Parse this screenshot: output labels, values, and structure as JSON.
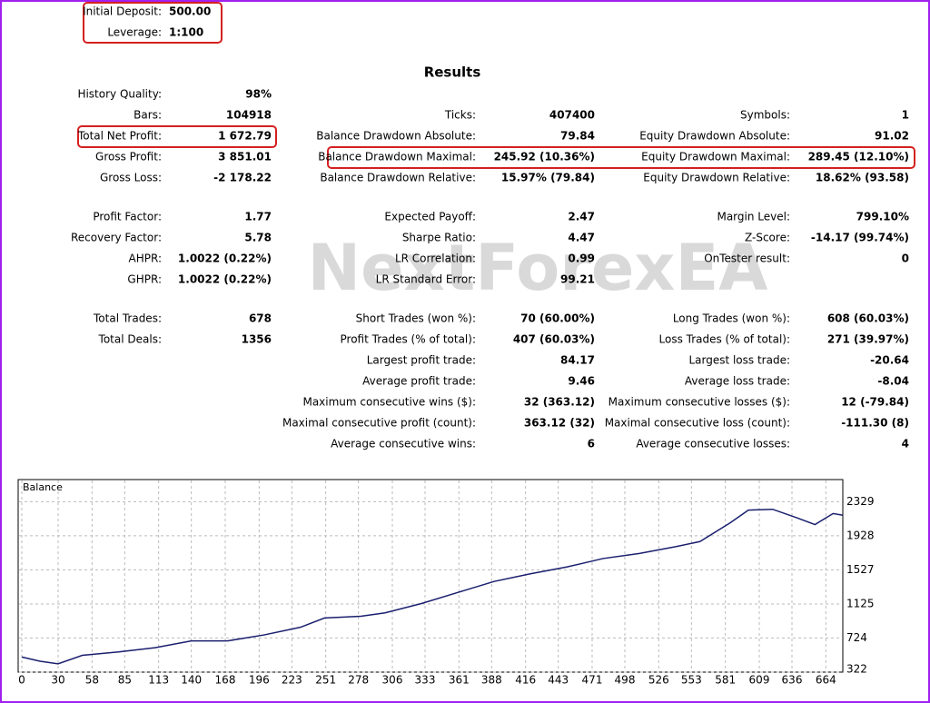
{
  "header": {
    "rows": [
      [
        "Initial Deposit:",
        "500.00"
      ],
      [
        "Leverage:",
        "1:100"
      ]
    ]
  },
  "title": "Results",
  "watermark": "NextForexEA",
  "report": {
    "sections": [
      [
        [
          [
            "History Quality:",
            "98%"
          ],
          null,
          null
        ],
        [
          [
            "Bars:",
            "104918"
          ],
          [
            "Ticks:",
            "407400"
          ],
          [
            "Symbols:",
            "1"
          ]
        ],
        [
          [
            "Total Net Profit:",
            "1 672.79"
          ],
          [
            "Balance Drawdown Absolute:",
            "79.84"
          ],
          [
            "Equity Drawdown Absolute:",
            "91.02"
          ]
        ],
        [
          [
            "Gross Profit:",
            "3 851.01"
          ],
          [
            "Balance Drawdown Maximal:",
            "245.92 (10.36%)"
          ],
          [
            "Equity Drawdown Maximal:",
            "289.45 (12.10%)"
          ]
        ],
        [
          [
            "Gross Loss:",
            "-2 178.22"
          ],
          [
            "Balance Drawdown Relative:",
            "15.97% (79.84)"
          ],
          [
            "Equity Drawdown Relative:",
            "18.62% (93.58)"
          ]
        ]
      ],
      [
        [
          [
            "Profit Factor:",
            "1.77"
          ],
          [
            "Expected Payoff:",
            "2.47"
          ],
          [
            "Margin Level:",
            "799.10%"
          ]
        ],
        [
          [
            "Recovery Factor:",
            "5.78"
          ],
          [
            "Sharpe Ratio:",
            "4.47"
          ],
          [
            "Z-Score:",
            "-14.17 (99.74%)"
          ]
        ],
        [
          [
            "AHPR:",
            "1.0022 (0.22%)"
          ],
          [
            "LR Correlation:",
            "0.99"
          ],
          [
            "OnTester result:",
            "0"
          ]
        ],
        [
          [
            "GHPR:",
            "1.0022 (0.22%)"
          ],
          [
            "LR Standard Error:",
            "99.21"
          ],
          null
        ]
      ],
      [
        [
          [
            "Total Trades:",
            "678"
          ],
          [
            "Short Trades (won %):",
            "70 (60.00%)"
          ],
          [
            "Long Trades (won %):",
            "608 (60.03%)"
          ]
        ],
        [
          [
            "Total Deals:",
            "1356"
          ],
          [
            "Profit Trades (% of total):",
            "407 (60.03%)"
          ],
          [
            "Loss Trades (% of total):",
            "271 (39.97%)"
          ]
        ],
        [
          null,
          [
            "Largest profit trade:",
            "84.17"
          ],
          [
            "Largest loss trade:",
            "-20.64"
          ]
        ],
        [
          null,
          [
            "Average profit trade:",
            "9.46"
          ],
          [
            "Average loss trade:",
            "-8.04"
          ]
        ],
        [
          null,
          [
            "Maximum consecutive wins ($):",
            "32 (363.12)"
          ],
          [
            "Maximum consecutive losses ($):",
            "12 (-79.84)"
          ]
        ],
        [
          null,
          [
            "Maximal consecutive profit (count):",
            "363.12 (32)"
          ],
          [
            "Maximal consecutive loss (count):",
            "-111.30 (8)"
          ]
        ],
        [
          null,
          [
            "Average consecutive wins:",
            "6"
          ],
          [
            "Average consecutive losses:",
            "4"
          ]
        ]
      ]
    ]
  },
  "chart_data": {
    "type": "line",
    "x": [
      0,
      15,
      30,
      50,
      80,
      110,
      140,
      170,
      200,
      230,
      250,
      280,
      300,
      330,
      360,
      390,
      420,
      450,
      480,
      510,
      540,
      560,
      585,
      600,
      620,
      640,
      655,
      670,
      678
    ],
    "series": [
      {
        "name": "Balance",
        "color": "#1a1f6e",
        "values": [
          500,
          450,
          420,
          520,
          560,
          610,
          690,
          690,
          760,
          850,
          960,
          980,
          1020,
          1130,
          1260,
          1390,
          1480,
          1560,
          1660,
          1720,
          1800,
          1860,
          2080,
          2230,
          2240,
          2140,
          2060,
          2190,
          2170
        ]
      }
    ],
    "xlim": [
      0,
      678
    ],
    "xticks": [
      0,
      30,
      58,
      85,
      113,
      140,
      168,
      196,
      223,
      251,
      278,
      306,
      333,
      361,
      388,
      416,
      443,
      471,
      498,
      526,
      553,
      581,
      609,
      636,
      664
    ],
    "ylim": [
      322,
      2590
    ],
    "yticks": [
      322,
      724,
      1125,
      1527,
      1928,
      2329
    ],
    "grid": true
  }
}
